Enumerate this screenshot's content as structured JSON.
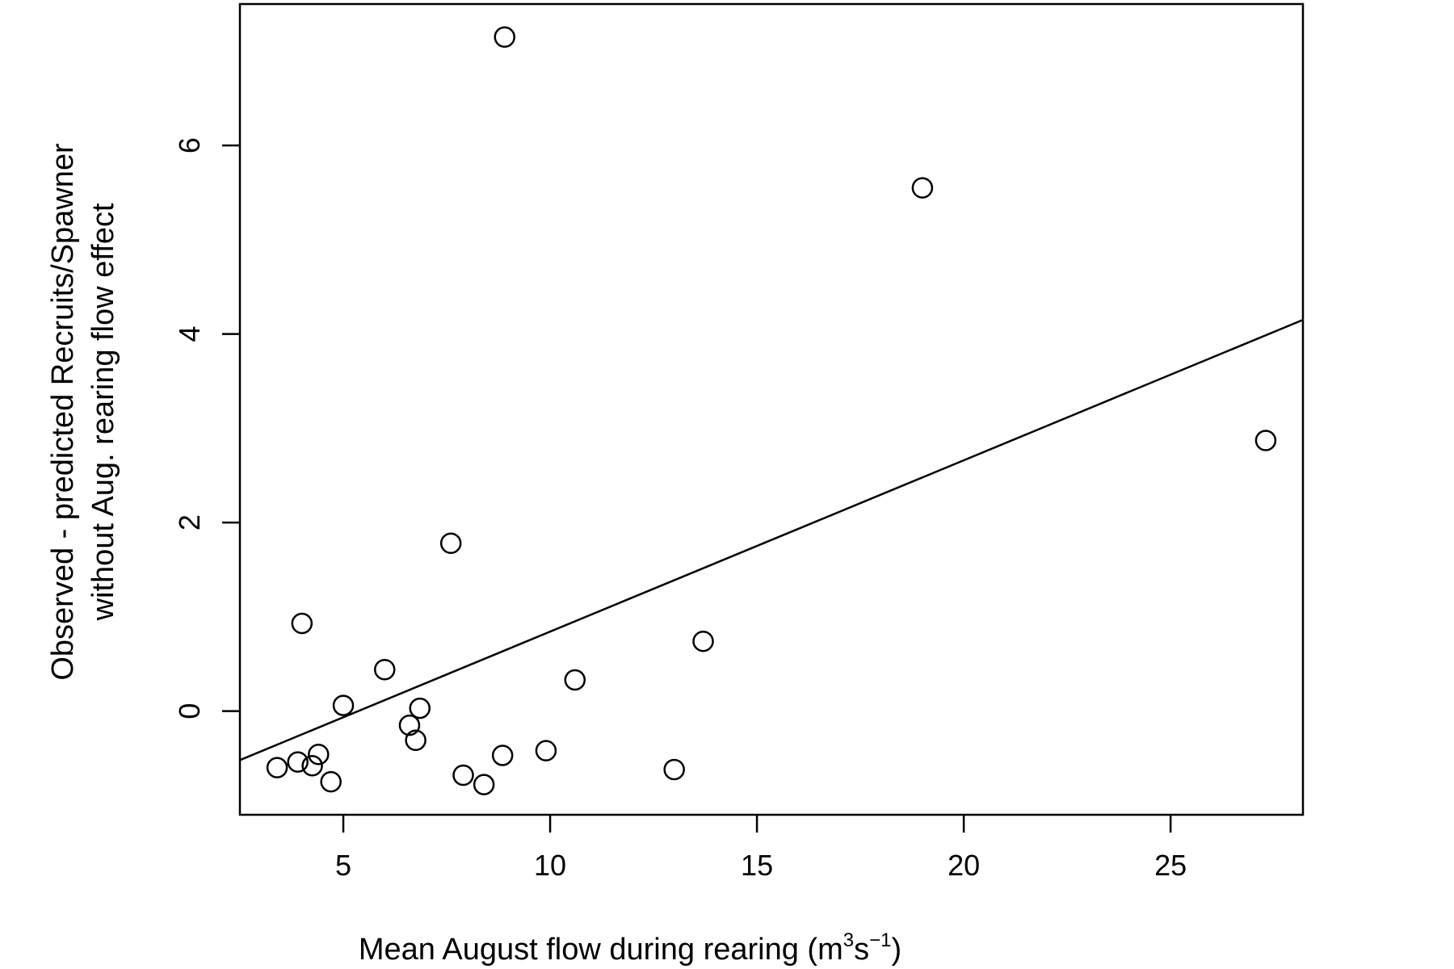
{
  "chart_data": {
    "type": "scatter",
    "title": "",
    "xlabel": "Mean August flow during rearing (m",
    "xlabel_sup1": "3",
    "xlabel_mid": "s",
    "xlabel_sup2": "−1",
    "xlabel_end": ")",
    "ylabel_line1": "Observed - predicted Recruits/Spawner",
    "ylabel_line2": "without Aug. rearing flow effect",
    "xlim": [
      2.5,
      28.2
    ],
    "ylim": [
      -1.1,
      7.5
    ],
    "x_ticks": [
      5,
      10,
      15,
      20,
      25
    ],
    "x_tick_labels": [
      "5",
      "10",
      "15",
      "20",
      "25"
    ],
    "y_ticks": [
      0,
      2,
      4,
      6
    ],
    "y_tick_labels": [
      "0",
      "2",
      "4",
      "6"
    ],
    "grid": false,
    "legend": "none",
    "points": [
      {
        "x": 3.4,
        "y": -0.6
      },
      {
        "x": 3.9,
        "y": -0.54
      },
      {
        "x": 4.0,
        "y": 0.93
      },
      {
        "x": 4.25,
        "y": -0.58
      },
      {
        "x": 4.4,
        "y": -0.46
      },
      {
        "x": 4.7,
        "y": -0.75
      },
      {
        "x": 5.0,
        "y": 0.06
      },
      {
        "x": 6.0,
        "y": 0.44
      },
      {
        "x": 6.6,
        "y": -0.15
      },
      {
        "x": 6.75,
        "y": -0.31
      },
      {
        "x": 6.85,
        "y": 0.03
      },
      {
        "x": 7.6,
        "y": 1.78
      },
      {
        "x": 7.9,
        "y": -0.68
      },
      {
        "x": 8.4,
        "y": -0.78
      },
      {
        "x": 8.85,
        "y": -0.47
      },
      {
        "x": 8.9,
        "y": 7.15
      },
      {
        "x": 9.9,
        "y": -0.42
      },
      {
        "x": 10.6,
        "y": 0.33
      },
      {
        "x": 13.0,
        "y": -0.62
      },
      {
        "x": 13.7,
        "y": 0.74
      },
      {
        "x": 19.0,
        "y": 5.55
      },
      {
        "x": 27.3,
        "y": 2.87
      }
    ],
    "fit_line": {
      "x": [
        2.5,
        28.2
      ],
      "y": [
        -0.52,
        4.15
      ]
    },
    "colors": {
      "point_stroke": "#000000",
      "line": "#000000",
      "axis": "#000000"
    }
  }
}
